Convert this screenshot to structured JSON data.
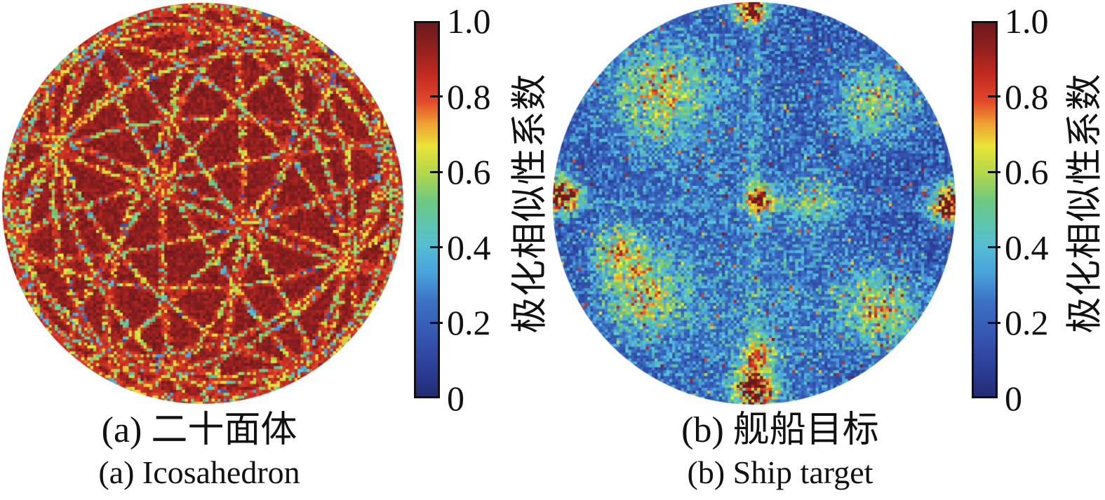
{
  "figure": {
    "kind": "dual circular polarization-similarity heatmaps with shared jet-style colormap",
    "panels": [
      {
        "id": "a",
        "caption_zh": "(a) 二十面体",
        "caption_en": "(a) Icosahedron"
      },
      {
        "id": "b",
        "caption_zh": "(b) 舰船目标",
        "caption_en": "(b) Ship target"
      }
    ],
    "colorbar": {
      "label": "极化相似性系数",
      "tick_labels": [
        "1.0",
        "0.8",
        "0.6",
        "0.4",
        "0.2",
        "0"
      ],
      "tick_values": [
        1.0,
        0.8,
        0.6,
        0.4,
        0.2,
        0
      ],
      "inner_ticks": [
        0.8,
        0.6,
        0.4,
        0.2
      ],
      "range": [
        0,
        1
      ],
      "gradient_stops": [
        [
          0.0,
          "#232c70"
        ],
        [
          0.05,
          "#29378d"
        ],
        [
          0.15,
          "#3353af"
        ],
        [
          0.25,
          "#3c70c4"
        ],
        [
          0.33,
          "#4aa2da"
        ],
        [
          0.4,
          "#55bdd4"
        ],
        [
          0.46,
          "#5ec6ae"
        ],
        [
          0.52,
          "#6cc883"
        ],
        [
          0.6,
          "#b5d74a"
        ],
        [
          0.67,
          "#e9e437"
        ],
        [
          0.73,
          "#f0a032"
        ],
        [
          0.79,
          "#e2492b"
        ],
        [
          0.86,
          "#c32a21"
        ],
        [
          0.93,
          "#93201f"
        ],
        [
          1.0,
          "#6d191e"
        ]
      ]
    }
  },
  "chart_data": [
    {
      "type": "heatmap",
      "subplot": "a",
      "title_zh": "(a) 二十面体",
      "title_en": "(a) Icosahedron",
      "shape": "circular disk (orthographic sphere projection), pixelated ~136x136 cells",
      "value_label": "极化相似性系数",
      "value_range": [
        0,
        1
      ],
      "pattern": "background values ~0.88-1.00 (dark red) crossed by 15 icosahedral great-circle lines ~0.45-0.70 (green/yellow) with red-orange ~0.85 halos and sparse blue dots ~0.05-0.30 at crossings",
      "render": {
        "grid": 136,
        "seed": 11,
        "base_value": 0.935,
        "base_noise": 0.05,
        "great_circles": 15,
        "view_rotation_rad": [
          0.45,
          0.2,
          0.05
        ]
      }
    },
    {
      "type": "heatmap",
      "subplot": "b",
      "title_zh": "(b) 舰船目标",
      "title_en": "(b) Ship target",
      "shape": "circular disk (orthographic sphere projection), pixelated ~138x138 cells",
      "value_label": "极化相似性系数",
      "value_range": [
        0,
        1
      ],
      "pattern": "speckle field mostly ~0.05-0.35 (blue) with green speckle ~0.4-0.55, faint vertical/horizontal streaks through center, and red hotspots ~0.7-1.0 at center, disk edges (left, right, top, bottom) and four diffuse quadrant clusters",
      "render": {
        "grid": 138,
        "seed": 97,
        "base_value": 0.06,
        "base_noise": 0.3,
        "hotspots": [
          {
            "name": "center",
            "x": 0.03,
            "y": -0.02,
            "r": 0.07,
            "amp": 1.05
          },
          {
            "name": "center-right-streak",
            "x": 0.3,
            "y": -0.01,
            "r": 0.13,
            "amp": 0.35
          },
          {
            "name": "left-edge",
            "x": -0.96,
            "y": -0.04,
            "r": 0.09,
            "amp": 1.2
          },
          {
            "name": "right-edge",
            "x": 0.97,
            "y": 0.0,
            "r": 0.09,
            "amp": 1.2
          },
          {
            "name": "top-edge",
            "x": -0.02,
            "y": -0.98,
            "r": 0.08,
            "amp": 1.2
          },
          {
            "name": "bottom-edge",
            "x": 0.0,
            "y": 0.93,
            "r": 0.1,
            "amp": 1.1
          },
          {
            "name": "bottom-streak",
            "x": 0.02,
            "y": 0.75,
            "r": 0.08,
            "amp": 0.6
          },
          {
            "name": "top-left",
            "x": -0.46,
            "y": -0.55,
            "r": 0.22,
            "amp": 0.52
          },
          {
            "name": "top-right",
            "x": 0.6,
            "y": -0.5,
            "r": 0.18,
            "amp": 0.48
          },
          {
            "name": "bottom-left",
            "x": -0.55,
            "y": 0.45,
            "r": 0.2,
            "amp": 0.55
          },
          {
            "name": "mid-left-low",
            "x": -0.68,
            "y": 0.22,
            "r": 0.12,
            "amp": 0.5
          },
          {
            "name": "bottom-right",
            "x": 0.62,
            "y": 0.52,
            "r": 0.18,
            "amp": 0.55
          },
          {
            "name": "lower-green-band",
            "x": 0.0,
            "y": 0.55,
            "r": 0.55,
            "amp": 0.16
          },
          {
            "name": "upper-green-band",
            "x": -0.3,
            "y": -0.45,
            "r": 0.5,
            "amp": 0.12
          }
        ]
      }
    }
  ]
}
